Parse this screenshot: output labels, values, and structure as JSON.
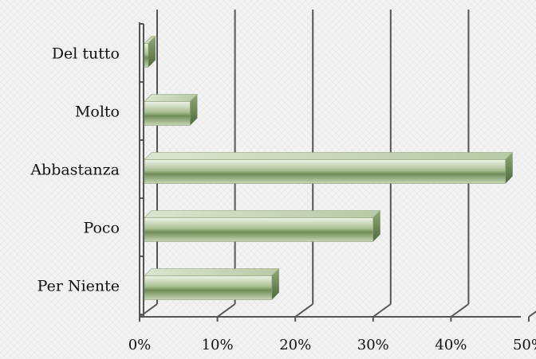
{
  "chart_data": {
    "type": "bar",
    "orientation": "horizontal",
    "three_d": true,
    "categories": [
      "Del tutto",
      "Molto",
      "Abbastanza",
      "Poco",
      "Per Niente"
    ],
    "values": [
      0.5,
      6.5,
      47,
      30,
      17
    ],
    "value_unit": "%",
    "xlim": [
      0,
      50
    ],
    "x_ticks": [
      "0%",
      "10%",
      "20%",
      "30%",
      "40%",
      "50%"
    ],
    "title": "",
    "xlabel": "",
    "ylabel": "",
    "grid": "vertical",
    "legend": "none",
    "bar_color": "#7d9a62",
    "grid_color": "#555555"
  }
}
